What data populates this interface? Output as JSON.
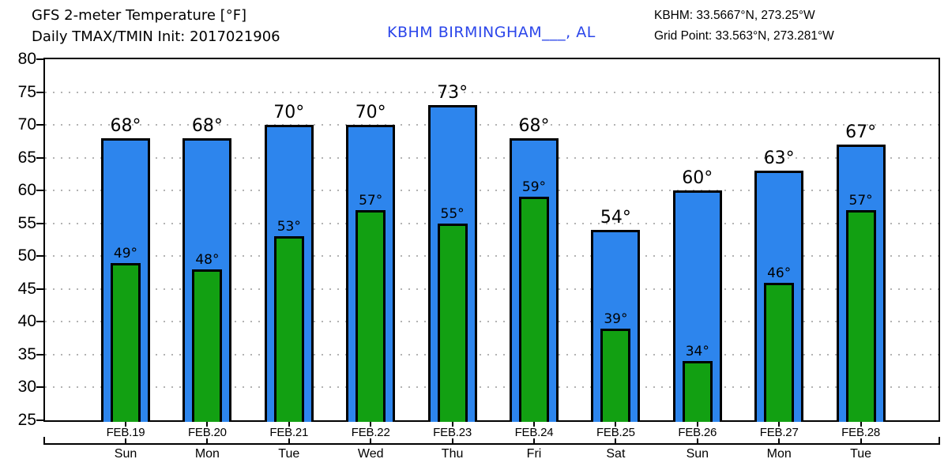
{
  "header": {
    "title_line1": "GFS 2-meter Temperature [°F]",
    "title_line2": "Daily TMAX/TMIN Init: 2017021906",
    "station": "KBHM BIRMINGHAM___, AL",
    "coords_line1": "KBHM: 33.5667°N, 273.25°W",
    "coords_line2": "Grid Point: 33.563°N, 273.281°W"
  },
  "chart_data": {
    "type": "bar",
    "title": "GFS 2-meter Temperature [°F] Daily TMAX/TMIN Init: 2017021906",
    "station_label": "KBHM BIRMINGHAM___, AL",
    "categories": [
      "FEB.19",
      "FEB.20",
      "FEB.21",
      "FEB.22",
      "FEB.23",
      "FEB.24",
      "FEB.25",
      "FEB.26",
      "FEB.27",
      "FEB.28"
    ],
    "weekdays": [
      "Sun",
      "Mon",
      "Tue",
      "Wed",
      "Thu",
      "Fri",
      "Sat",
      "Sun",
      "Mon",
      "Tue"
    ],
    "series": [
      {
        "name": "TMAX",
        "color": "#2d85ed",
        "values": [
          68,
          68,
          70,
          70,
          73,
          68,
          54,
          60,
          63,
          67
        ]
      },
      {
        "name": "TMIN",
        "color": "#12a012",
        "values": [
          49,
          48,
          53,
          57,
          55,
          59,
          39,
          34,
          46,
          57
        ]
      }
    ],
    "unit_suffix": "°",
    "xlabel": "",
    "ylabel": "",
    "ylim": [
      25,
      80
    ],
    "ytick_step": 5,
    "yticks": [
      80,
      75,
      70,
      65,
      60,
      55,
      50,
      45,
      40,
      35,
      30,
      25
    ],
    "grid": "horizontal-dotted",
    "legend": "none",
    "colors": {
      "background": "#ffffff",
      "axis": "#000000",
      "grid": "#b3b3b3",
      "text": "#000000",
      "station_text": "#2b46ea",
      "tmax_bar": "#2d85ed",
      "tmin_bar": "#12a012",
      "bar_outline": "#000000"
    }
  }
}
